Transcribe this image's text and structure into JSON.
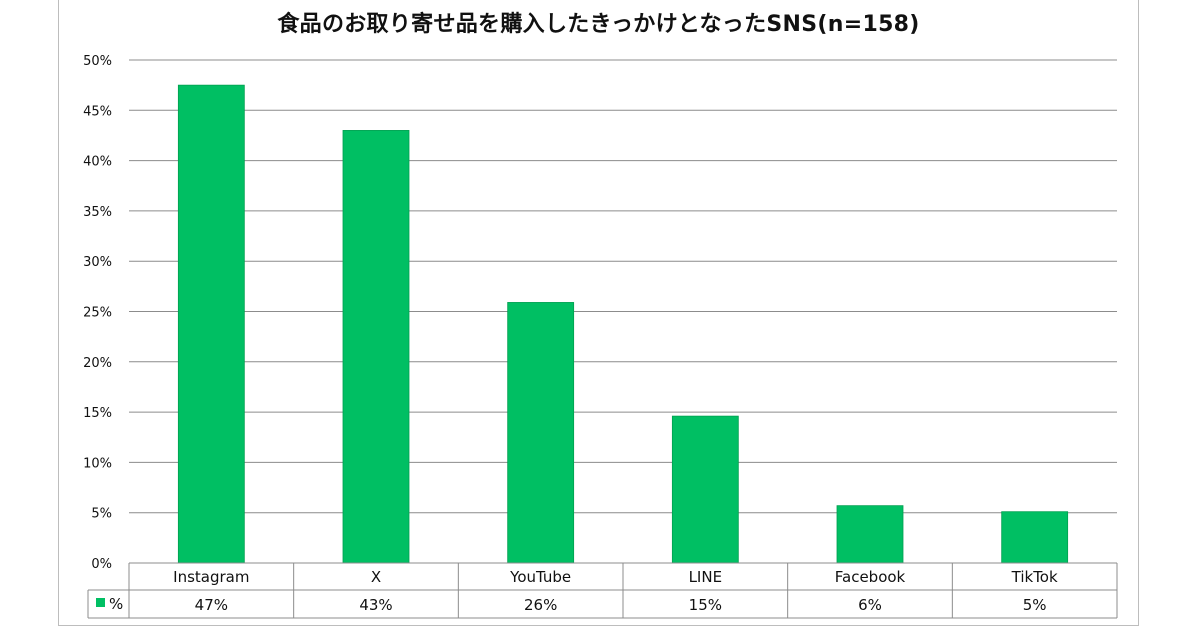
{
  "chart_data": {
    "type": "bar",
    "title": "食品のお取り寄せ品を購入したきっかけとなったSNS(n=158)",
    "categories": [
      "Instagram",
      "X",
      "YouTube",
      "LINE",
      "Facebook",
      "TikTok"
    ],
    "series": [
      {
        "name": "%",
        "values": [
          47.5,
          43.0,
          25.9,
          14.6,
          5.7,
          5.1
        ],
        "labels": [
          "47%",
          "43%",
          "26%",
          "15%",
          "6%",
          "5%"
        ],
        "color": "#00bf63"
      }
    ],
    "ylim": [
      0,
      50
    ],
    "yticks": [
      "0%",
      "5%",
      "10%",
      "15%",
      "20%",
      "25%",
      "30%",
      "35%",
      "40%",
      "45%",
      "50%"
    ],
    "ytick_values": [
      0,
      5,
      10,
      15,
      20,
      25,
      30,
      35,
      40,
      45,
      50
    ],
    "grid": true,
    "legend": "data-table",
    "data_table": true,
    "xlabel": "",
    "ylabel": ""
  },
  "colors": {
    "bar": "#00bf63",
    "bar_edge": "#00a050",
    "grid": "#8c8c8c",
    "table_border": "#8c8c8c"
  }
}
